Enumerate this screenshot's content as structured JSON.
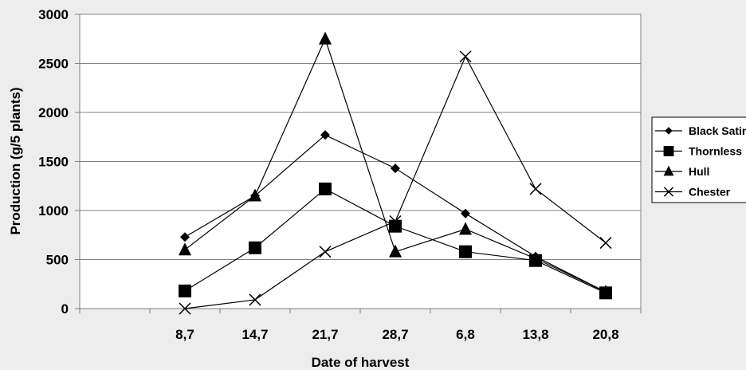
{
  "chart_data": {
    "type": "line",
    "title": "",
    "xlabel": "Date of harvest",
    "ylabel": "Production (g/5 plants)",
    "categories": [
      "",
      "8,7",
      "14,7",
      "21,7",
      "28,7",
      "6,8",
      "13,8",
      "20,8"
    ],
    "ylim": [
      0,
      3000
    ],
    "yticks": [
      "0",
      "500",
      "1000",
      "1500",
      "2000",
      "2500",
      "3000"
    ],
    "grid": true,
    "legend_position": "right",
    "series": [
      {
        "name": "Black Satin",
        "marker": "diamond",
        "values": [
          null,
          730,
          1150,
          1770,
          1430,
          970,
          530,
          170
        ]
      },
      {
        "name": "Thornless",
        "marker": "square",
        "values": [
          null,
          180,
          620,
          1220,
          840,
          580,
          490,
          160
        ]
      },
      {
        "name": "Hull",
        "marker": "triangle",
        "values": [
          null,
          600,
          1150,
          2750,
          580,
          810,
          510,
          170
        ]
      },
      {
        "name": "Chester",
        "marker": "x",
        "values": [
          null,
          0,
          90,
          580,
          890,
          2570,
          1220,
          670
        ]
      }
    ]
  }
}
